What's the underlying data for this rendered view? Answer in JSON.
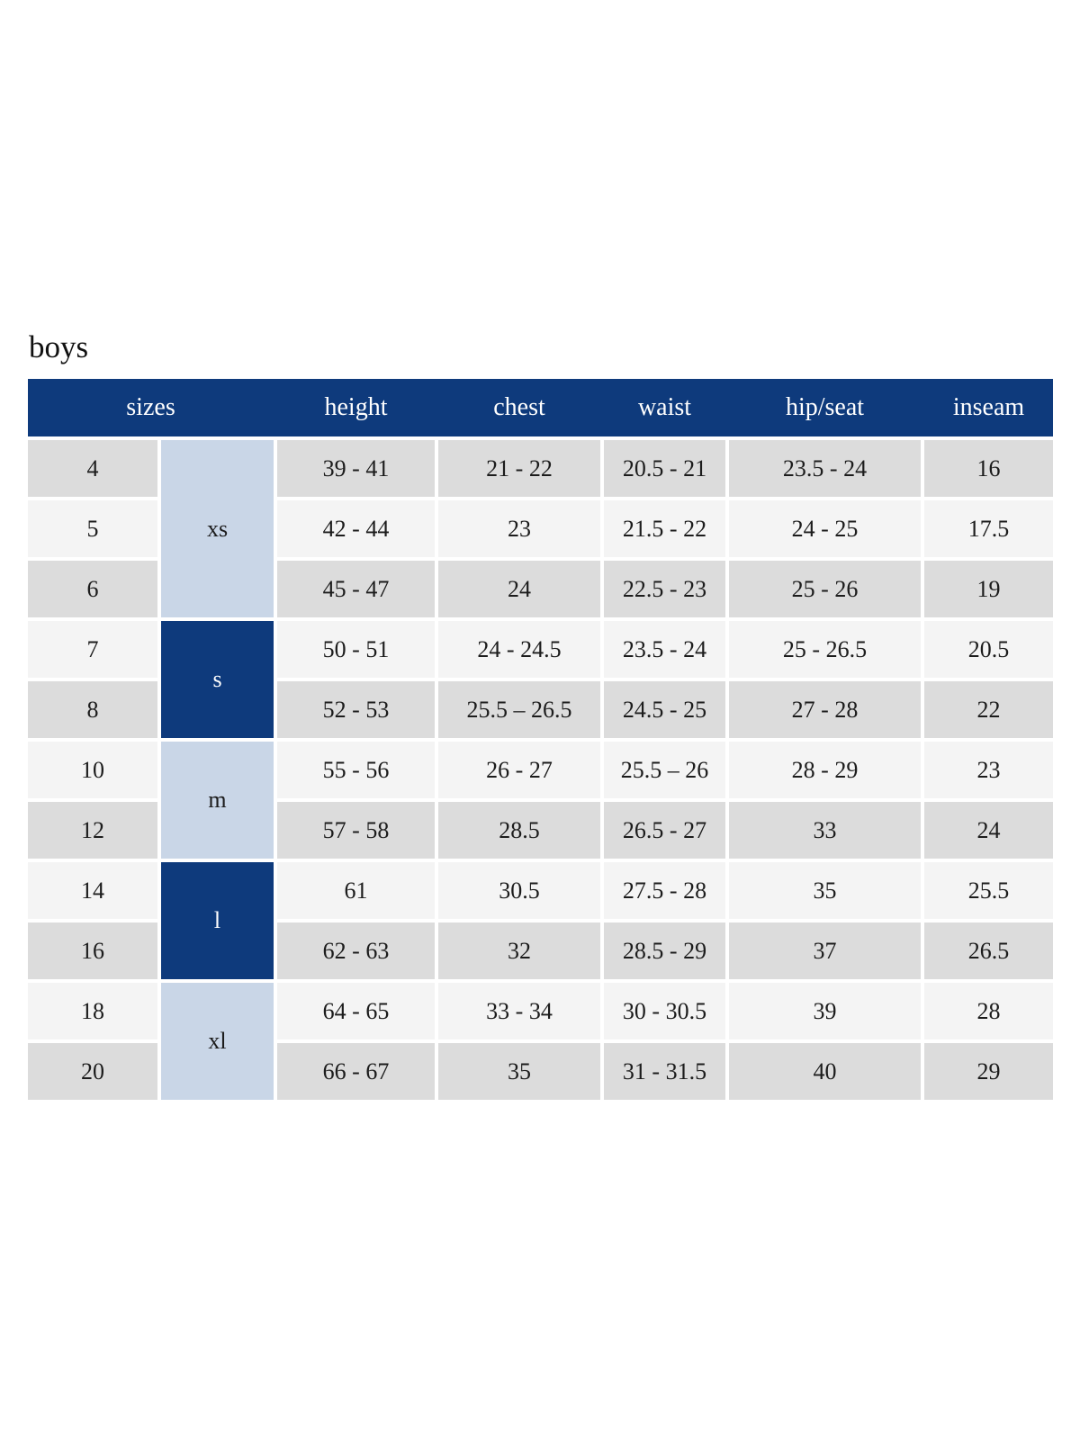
{
  "page": {
    "title": "boys"
  },
  "colors": {
    "header_bg": "#0e3a7c",
    "header_text": "#ffffff",
    "group_light_bg": "#c9d6e7",
    "group_dark_bg": "#0e3a7c",
    "row_odd_bg": "#dcdcdc",
    "row_even_bg": "#f4f4f4",
    "cell_text": "#1c1c1c"
  },
  "chart_data": {
    "type": "table",
    "title": "boys",
    "columns": [
      "sizes",
      "height",
      "chest",
      "waist",
      "hip/seat",
      "inseam"
    ],
    "size_groups": [
      {
        "label": "xs",
        "span": 3,
        "style": "light"
      },
      {
        "label": "s",
        "span": 2,
        "style": "dark"
      },
      {
        "label": "m",
        "span": 2,
        "style": "light"
      },
      {
        "label": "l",
        "span": 2,
        "style": "dark"
      },
      {
        "label": "xl",
        "span": 2,
        "style": "light"
      }
    ],
    "rows": [
      {
        "size": "4",
        "height": "39 - 41",
        "chest": "21 - 22",
        "waist": "20.5 - 21",
        "hip_seat": "23.5 - 24",
        "inseam": "16"
      },
      {
        "size": "5",
        "height": "42 - 44",
        "chest": "23",
        "waist": "21.5 - 22",
        "hip_seat": "24 - 25",
        "inseam": "17.5"
      },
      {
        "size": "6",
        "height": "45 - 47",
        "chest": "24",
        "waist": "22.5 - 23",
        "hip_seat": "25 - 26",
        "inseam": "19"
      },
      {
        "size": "7",
        "height": "50 - 51",
        "chest": "24 - 24.5",
        "waist": "23.5 - 24",
        "hip_seat": "25 - 26.5",
        "inseam": "20.5"
      },
      {
        "size": "8",
        "height": "52 - 53",
        "chest": "25.5 – 26.5",
        "waist": "24.5 - 25",
        "hip_seat": "27 - 28",
        "inseam": "22"
      },
      {
        "size": "10",
        "height": "55 - 56",
        "chest": "26 - 27",
        "waist": "25.5 – 26",
        "hip_seat": "28 - 29",
        "inseam": "23"
      },
      {
        "size": "12",
        "height": "57 - 58",
        "chest": "28.5",
        "waist": "26.5 - 27",
        "hip_seat": "33",
        "inseam": "24"
      },
      {
        "size": "14",
        "height": "61",
        "chest": "30.5",
        "waist": "27.5 - 28",
        "hip_seat": "35",
        "inseam": "25.5"
      },
      {
        "size": "16",
        "height": "62 - 63",
        "chest": "32",
        "waist": "28.5 - 29",
        "hip_seat": "37",
        "inseam": "26.5"
      },
      {
        "size": "18",
        "height": "64 - 65",
        "chest": "33 - 34",
        "waist": "30 - 30.5",
        "hip_seat": "39",
        "inseam": "28"
      },
      {
        "size": "20",
        "height": "66 - 67",
        "chest": "35",
        "waist": "31 - 31.5",
        "hip_seat": "40",
        "inseam": "29"
      }
    ]
  }
}
